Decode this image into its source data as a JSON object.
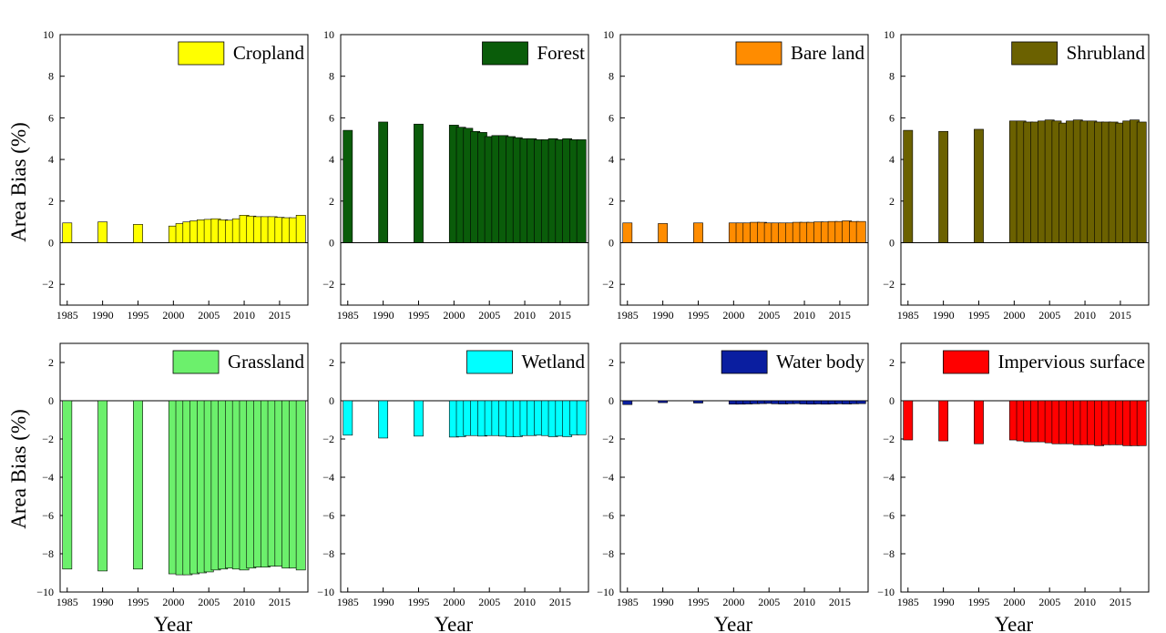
{
  "figure": {
    "ylabel": "Area Bias (%)",
    "xlabel": "Year"
  },
  "chart_data": [
    {
      "type": "bar",
      "legend": "Cropland",
      "color": "#ffff00",
      "ylim": [
        -3,
        10
      ],
      "yticks": [
        -2,
        0,
        2,
        4,
        6,
        8,
        10
      ],
      "x": [
        1985,
        1990,
        1995,
        2000,
        2001,
        2002,
        2003,
        2004,
        2005,
        2006,
        2007,
        2008,
        2009,
        2010,
        2011,
        2012,
        2013,
        2014,
        2015,
        2016,
        2017,
        2018
      ],
      "values": [
        0.95,
        1.0,
        0.88,
        0.8,
        0.92,
        1.0,
        1.05,
        1.1,
        1.12,
        1.15,
        1.1,
        1.08,
        1.15,
        1.32,
        1.28,
        1.25,
        1.25,
        1.25,
        1.22,
        1.2,
        1.2,
        1.32
      ],
      "xticks": [
        1985,
        1990,
        1995,
        2000,
        2005,
        2010,
        2015
      ]
    },
    {
      "type": "bar",
      "legend": "Forest",
      "color": "#0a5c0a",
      "ylim": [
        -3,
        10
      ],
      "yticks": [
        -2,
        0,
        2,
        4,
        6,
        8,
        10
      ],
      "x": [
        1985,
        1990,
        1995,
        2000,
        2001,
        2002,
        2003,
        2004,
        2005,
        2006,
        2007,
        2008,
        2009,
        2010,
        2011,
        2012,
        2013,
        2014,
        2015,
        2016,
        2017,
        2018
      ],
      "values": [
        5.4,
        5.8,
        5.7,
        5.65,
        5.55,
        5.5,
        5.35,
        5.3,
        5.1,
        5.15,
        5.15,
        5.1,
        5.05,
        5.0,
        5.0,
        4.95,
        4.95,
        5.0,
        4.95,
        5.0,
        4.95,
        4.95
      ],
      "xticks": [
        1985,
        1990,
        1995,
        2000,
        2005,
        2010,
        2015
      ]
    },
    {
      "type": "bar",
      "legend": "Bare land",
      "color": "#ff8c00",
      "ylim": [
        -3,
        10
      ],
      "yticks": [
        -2,
        0,
        2,
        4,
        6,
        8,
        10
      ],
      "x": [
        1985,
        1990,
        1995,
        2000,
        2001,
        2002,
        2003,
        2004,
        2005,
        2006,
        2007,
        2008,
        2009,
        2010,
        2011,
        2012,
        2013,
        2014,
        2015,
        2016,
        2017,
        2018
      ],
      "values": [
        0.95,
        0.92,
        0.95,
        0.95,
        0.95,
        0.95,
        0.98,
        0.98,
        0.95,
        0.95,
        0.95,
        0.95,
        0.98,
        0.98,
        0.98,
        1.0,
        1.0,
        1.02,
        1.02,
        1.05,
        1.02,
        1.02
      ],
      "xticks": [
        1985,
        1990,
        1995,
        2000,
        2005,
        2010,
        2015
      ]
    },
    {
      "type": "bar",
      "legend": "Shrubland",
      "color": "#6b6100",
      "ylim": [
        -3,
        10
      ],
      "yticks": [
        -2,
        0,
        2,
        4,
        6,
        8,
        10
      ],
      "x": [
        1985,
        1990,
        1995,
        2000,
        2001,
        2002,
        2003,
        2004,
        2005,
        2006,
        2007,
        2008,
        2009,
        2010,
        2011,
        2012,
        2013,
        2014,
        2015,
        2016,
        2017,
        2018
      ],
      "values": [
        5.4,
        5.35,
        5.45,
        5.85,
        5.85,
        5.8,
        5.8,
        5.85,
        5.9,
        5.85,
        5.75,
        5.85,
        5.9,
        5.85,
        5.85,
        5.8,
        5.8,
        5.8,
        5.75,
        5.85,
        5.9,
        5.8
      ],
      "xticks": [
        1985,
        1990,
        1995,
        2000,
        2005,
        2010,
        2015
      ]
    },
    {
      "type": "bar",
      "legend": "Grassland",
      "color": "#6cf06c",
      "ylim": [
        -10,
        3
      ],
      "yticks": [
        -10,
        -8,
        -6,
        -4,
        -2,
        0,
        2
      ],
      "x": [
        1985,
        1990,
        1995,
        2000,
        2001,
        2002,
        2003,
        2004,
        2005,
        2006,
        2007,
        2008,
        2009,
        2010,
        2011,
        2012,
        2013,
        2014,
        2015,
        2016,
        2017,
        2018
      ],
      "values": [
        -8.8,
        -8.9,
        -8.8,
        -9.05,
        -9.1,
        -9.1,
        -9.05,
        -9.0,
        -8.95,
        -8.85,
        -8.8,
        -8.75,
        -8.8,
        -8.85,
        -8.75,
        -8.7,
        -8.7,
        -8.65,
        -8.65,
        -8.75,
        -8.75,
        -8.85
      ],
      "xticks": [
        1985,
        1990,
        1995,
        2000,
        2005,
        2010,
        2015
      ]
    },
    {
      "type": "bar",
      "legend": "Wetland",
      "color": "#00ffff",
      "ylim": [
        -10,
        3
      ],
      "yticks": [
        -10,
        -8,
        -6,
        -4,
        -2,
        0,
        2
      ],
      "x": [
        1985,
        1990,
        1995,
        2000,
        2001,
        2002,
        2003,
        2004,
        2005,
        2006,
        2007,
        2008,
        2009,
        2010,
        2011,
        2012,
        2013,
        2014,
        2015,
        2016,
        2017,
        2018
      ],
      "values": [
        -1.8,
        -1.95,
        -1.85,
        -1.9,
        -1.88,
        -1.82,
        -1.82,
        -1.85,
        -1.82,
        -1.82,
        -1.85,
        -1.88,
        -1.88,
        -1.82,
        -1.82,
        -1.8,
        -1.82,
        -1.88,
        -1.85,
        -1.88,
        -1.78,
        -1.78
      ],
      "xticks": [
        1985,
        1990,
        1995,
        2000,
        2005,
        2010,
        2015
      ]
    },
    {
      "type": "bar",
      "legend": "Water body",
      "color": "#0a1ea0",
      "ylim": [
        -10,
        3
      ],
      "yticks": [
        -10,
        -8,
        -6,
        -4,
        -2,
        0,
        2
      ],
      "x": [
        1985,
        1990,
        1995,
        2000,
        2001,
        2002,
        2003,
        2004,
        2005,
        2006,
        2007,
        2008,
        2009,
        2010,
        2011,
        2012,
        2013,
        2014,
        2015,
        2016,
        2017,
        2018
      ],
      "values": [
        -0.2,
        -0.1,
        -0.12,
        -0.18,
        -0.18,
        -0.17,
        -0.16,
        -0.15,
        -0.14,
        -0.16,
        -0.17,
        -0.16,
        -0.15,
        -0.17,
        -0.18,
        -0.17,
        -0.18,
        -0.17,
        -0.16,
        -0.17,
        -0.16,
        -0.15
      ],
      "xticks": [
        1985,
        1990,
        1995,
        2000,
        2005,
        2010,
        2015
      ]
    },
    {
      "type": "bar",
      "legend": "Impervious surface",
      "color": "#ff0000",
      "ylim": [
        -10,
        3
      ],
      "yticks": [
        -10,
        -8,
        -6,
        -4,
        -2,
        0,
        2
      ],
      "x": [
        1985,
        1990,
        1995,
        2000,
        2001,
        2002,
        2003,
        2004,
        2005,
        2006,
        2007,
        2008,
        2009,
        2010,
        2011,
        2012,
        2013,
        2014,
        2015,
        2016,
        2017,
        2018
      ],
      "values": [
        -2.05,
        -2.1,
        -2.25,
        -2.05,
        -2.1,
        -2.15,
        -2.15,
        -2.15,
        -2.2,
        -2.25,
        -2.25,
        -2.25,
        -2.3,
        -2.3,
        -2.3,
        -2.35,
        -2.3,
        -2.3,
        -2.3,
        -2.35,
        -2.35,
        -2.35
      ],
      "xticks": [
        1985,
        1990,
        1995,
        2000,
        2005,
        2010,
        2015
      ]
    }
  ]
}
